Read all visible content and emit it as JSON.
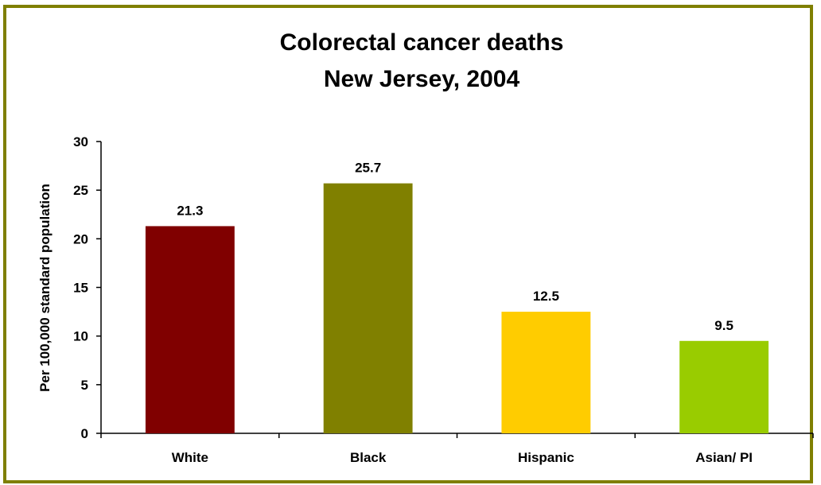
{
  "chart_data": {
    "type": "bar",
    "title_lines": [
      "Colorectal cancer deaths",
      "New Jersey, 2004"
    ],
    "xlabel": "",
    "ylabel": "Per 100,000 standard population",
    "categories": [
      "White",
      "Black",
      "Hispanic",
      "Asian/ PI"
    ],
    "values": [
      21.3,
      25.7,
      12.5,
      9.5
    ],
    "value_labels": [
      "21.3",
      "25.7",
      "12.5",
      "9.5"
    ],
    "bar_colors": [
      "#800000",
      "#808000",
      "#ffcc00",
      "#99cc00"
    ],
    "ylim": [
      0,
      30
    ],
    "yticks": [
      0,
      5,
      10,
      15,
      20,
      25,
      30
    ],
    "grid": false,
    "legend": "none"
  },
  "colors": {
    "frame_border": "#7f7f00",
    "axis": "#000000"
  }
}
